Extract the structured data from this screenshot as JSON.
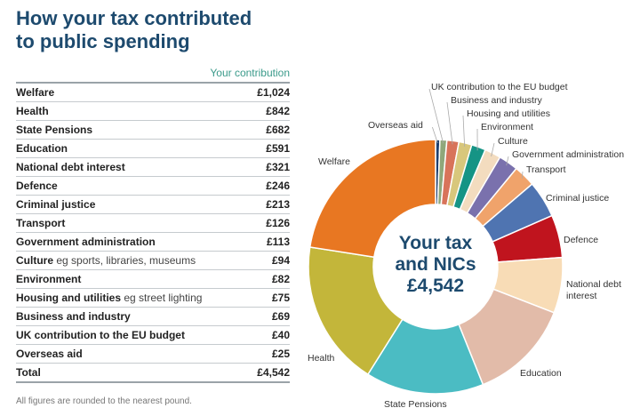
{
  "title_line1": "How your tax contributed",
  "title_line2": "to public spending",
  "table": {
    "column_header": "Your contribution",
    "rows": [
      {
        "name": "Welfare",
        "note": "",
        "value": "£1,024"
      },
      {
        "name": "Health",
        "note": "",
        "value": "£842"
      },
      {
        "name": "State Pensions",
        "note": "",
        "value": "£682"
      },
      {
        "name": "Education",
        "note": "",
        "value": "£591"
      },
      {
        "name": "National debt interest",
        "note": "",
        "value": "£321"
      },
      {
        "name": "Defence",
        "note": "",
        "value": "£246"
      },
      {
        "name": "Criminal justice",
        "note": "",
        "value": "£213"
      },
      {
        "name": "Transport",
        "note": "",
        "value": "£126"
      },
      {
        "name": "Government administration",
        "note": "",
        "value": "£113"
      },
      {
        "name": "Culture",
        "note": "eg sports, libraries, museums",
        "value": "£94"
      },
      {
        "name": "Environment",
        "note": "",
        "value": "£82"
      },
      {
        "name": "Housing and utilities",
        "note": "eg street lighting",
        "value": "£75"
      },
      {
        "name": "Business and industry",
        "note": "",
        "value": "£69"
      },
      {
        "name": "UK contribution to the EU budget",
        "note": "",
        "value": "£40"
      },
      {
        "name": "Overseas aid",
        "note": "",
        "value": "£25"
      }
    ],
    "total_label": "Total",
    "total_value": "£4,542"
  },
  "footnote": "All figures are rounded to the nearest pound.",
  "chart_data": {
    "type": "pie",
    "style": "donut",
    "start": "12 o'clock, clockwise",
    "center_text": [
      "Your tax",
      "and NICs",
      "£4,542"
    ],
    "slices": [
      {
        "label": "Overseas aid",
        "value": 25,
        "color": "#1f3f6e"
      },
      {
        "label": "UK contribution to the EU budget",
        "value": 40,
        "color": "#8fa77a"
      },
      {
        "label": "Business and industry",
        "value": 69,
        "color": "#d8735a"
      },
      {
        "label": "Housing and utilities",
        "value": 75,
        "color": "#d8c77c"
      },
      {
        "label": "Environment",
        "value": 82,
        "color": "#159485"
      },
      {
        "label": "Culture",
        "value": 94,
        "color": "#f3dcbf"
      },
      {
        "label": "Government administration",
        "value": 113,
        "color": "#7a71ad"
      },
      {
        "label": "Transport",
        "value": 126,
        "color": "#f0a36b"
      },
      {
        "label": "Criminal justice",
        "value": 213,
        "color": "#4f74b1"
      },
      {
        "label": "Defence",
        "value": 246,
        "color": "#c0141e"
      },
      {
        "label": "National debt interest",
        "value": 321,
        "color": "#f8dcb6"
      },
      {
        "label": "Education",
        "value": 591,
        "color": "#e2bba9"
      },
      {
        "label": "State Pensions",
        "value": 682,
        "color": "#4bbcc3"
      },
      {
        "label": "Health",
        "value": 842,
        "color": "#c3b63a"
      },
      {
        "label": "Welfare",
        "value": 1024,
        "color": "#e87722"
      }
    ]
  }
}
